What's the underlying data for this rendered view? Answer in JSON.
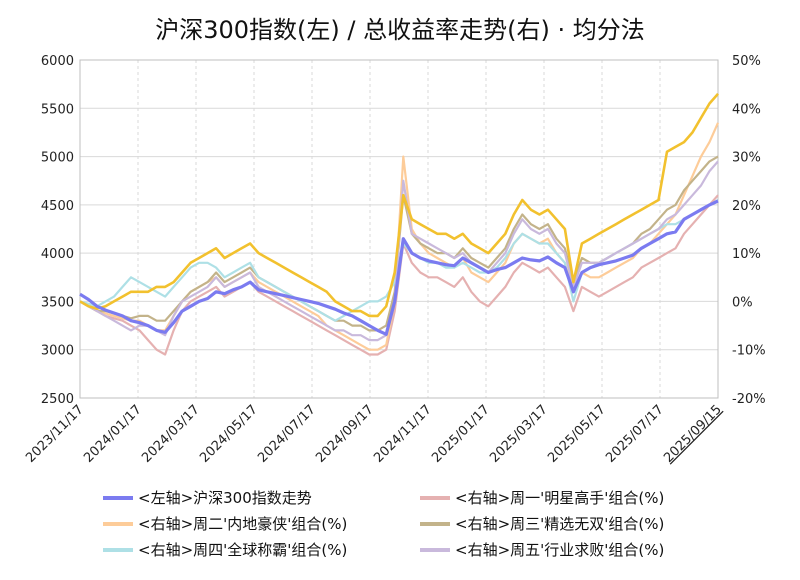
{
  "chart_data": {
    "type": "line",
    "title": "沪深300指数(左)  /  总收益率走势(右) · 均分法",
    "left_axis": {
      "ylim": [
        2500,
        6000
      ],
      "ticks": [
        "6000",
        "5500",
        "5000",
        "4500",
        "4000",
        "3500",
        "3000",
        "2500"
      ]
    },
    "right_axis": {
      "ylim": [
        -20,
        50
      ],
      "ticks": [
        "50%",
        "40%",
        "30%",
        "20%",
        "10%",
        "0%",
        "-10%",
        "-20%"
      ],
      "negative_tick_color": "#1ec51e"
    },
    "x_ticks": [
      "2023/11/17",
      "2024/01/17",
      "2024/03/17",
      "2024/05/17",
      "2024/07/17",
      "2024/09/17",
      "2024/11/17",
      "2025/01/17",
      "2025/03/17",
      "2025/05/17",
      "2025/07/17",
      "2025/09/15"
    ],
    "x_last_tick_color": "#e21b1b",
    "grid": true,
    "legend_position": "bottom",
    "series": [
      {
        "name": "<左轴>沪深300指数走势",
        "axis": "left",
        "color": "#7b7bf0",
        "values": [
          3575,
          3520,
          3450,
          3410,
          3380,
          3350,
          3300,
          3280,
          3250,
          3200,
          3180,
          3280,
          3400,
          3450,
          3500,
          3530,
          3600,
          3580,
          3620,
          3650,
          3700,
          3620,
          3600,
          3580,
          3560,
          3540,
          3520,
          3500,
          3480,
          3450,
          3420,
          3380,
          3350,
          3300,
          3250,
          3200,
          3160,
          3500,
          4150,
          4000,
          3950,
          3920,
          3900,
          3880,
          3870,
          3950,
          3900,
          3850,
          3800,
          3830,
          3850,
          3900,
          3950,
          3930,
          3920,
          3960,
          3900,
          3850,
          3600,
          3800,
          3850,
          3880,
          3900,
          3920,
          3950,
          3980,
          4050,
          4100,
          4150,
          4200,
          4220,
          4350,
          4400,
          4450,
          4500,
          4540
        ]
      },
      {
        "name": "<右轴>周一'明星高手'组合(%)",
        "axis": "right",
        "color": "#e5b1b1",
        "values": [
          0,
          -1,
          -2,
          -3,
          -3.5,
          -4,
          -5,
          -6,
          -8,
          -10,
          -11,
          -6,
          -2,
          0,
          1,
          2,
          3,
          1,
          2,
          3,
          4,
          2,
          1,
          0,
          -1,
          -2,
          -3,
          -4,
          -5,
          -6,
          -7,
          -8,
          -9,
          -10,
          -11,
          -11,
          -10,
          -2,
          12,
          8,
          6,
          5,
          5,
          4,
          3,
          5,
          2,
          0,
          -1,
          1,
          3,
          6,
          8,
          7,
          6,
          7,
          5,
          3,
          -2,
          3,
          2,
          1,
          2,
          3,
          4,
          5,
          7,
          8,
          9,
          10,
          11,
          14,
          16,
          18,
          20,
          22
        ]
      },
      {
        "name": "<右轴>周二'内地豪侠'组合(%)",
        "axis": "right",
        "color": "#fdcc99",
        "values": [
          0,
          -1,
          -2,
          -2.5,
          -3,
          -3.5,
          -4,
          -4,
          -5,
          -6,
          -6,
          -3,
          0,
          2,
          3,
          4,
          5,
          3,
          4,
          5,
          6,
          4,
          3,
          2,
          1,
          0,
          -1,
          -2,
          -3,
          -5,
          -6,
          -7,
          -8,
          -9,
          -10,
          -10,
          -9,
          0,
          30,
          15,
          12,
          10,
          9,
          8,
          7,
          9,
          6,
          5,
          4,
          6,
          8,
          12,
          14,
          13,
          12,
          13,
          10,
          8,
          2,
          6,
          5,
          5,
          6,
          7,
          8,
          9,
          11,
          12,
          14,
          16,
          18,
          22,
          26,
          30,
          33,
          37
        ]
      },
      {
        "name": "<右轴>周三'精选无双'组合(%)",
        "axis": "right",
        "color": "#c3b38a",
        "values": [
          0,
          -1,
          -2,
          -2,
          -2.5,
          -3,
          -3.5,
          -3,
          -3,
          -4,
          -4,
          -2,
          0,
          2,
          3,
          4,
          6,
          4,
          5,
          6,
          7,
          5,
          4,
          3,
          2,
          1,
          0,
          -1,
          -2,
          -3,
          -4,
          -4,
          -5,
          -5,
          -6,
          -6,
          -5,
          2,
          22,
          14,
          12,
          11,
          10,
          10,
          9,
          11,
          9,
          8,
          7,
          9,
          11,
          15,
          18,
          16,
          15,
          16,
          13,
          11,
          4,
          9,
          8,
          8,
          9,
          10,
          11,
          12,
          14,
          15,
          17,
          19,
          20,
          23,
          25,
          27,
          29,
          30
        ]
      },
      {
        "name": "<右轴>周四'全球称霸'组合(%)",
        "axis": "right",
        "color": "#aee0e6",
        "values": [
          0,
          -0.5,
          -1,
          0,
          1,
          3,
          5,
          4,
          3,
          2,
          1,
          3,
          5,
          7,
          8,
          8,
          7,
          5,
          6,
          7,
          8,
          5,
          4,
          3,
          2,
          1,
          0,
          -1,
          -2,
          -3,
          -4,
          -3,
          -2,
          -1,
          0,
          0,
          1,
          4,
          12,
          10,
          9,
          8,
          8,
          7,
          7,
          8,
          7,
          6,
          6,
          7,
          9,
          12,
          14,
          13,
          12,
          12,
          10,
          8,
          0,
          6,
          7,
          8,
          9,
          10,
          11,
          12,
          13,
          14,
          15,
          16,
          16,
          17,
          18,
          19,
          20,
          21
        ]
      },
      {
        "name": "<右轴>周五'行业求败'组合(%)",
        "axis": "right",
        "color": "#c9b9dc",
        "values": [
          0,
          -1,
          -2,
          -3,
          -4,
          -5,
          -6,
          -5,
          -5,
          -6,
          -7,
          -3,
          0,
          1,
          2,
          3,
          5,
          3,
          4,
          5,
          6,
          3,
          2,
          1,
          0,
          -1,
          -2,
          -3,
          -4,
          -5,
          -6,
          -6,
          -7,
          -7,
          -8,
          -8,
          -7,
          0,
          25,
          14,
          13,
          12,
          11,
          10,
          9,
          10,
          8,
          7,
          6,
          8,
          10,
          14,
          17,
          15,
          14,
          15,
          12,
          10,
          3,
          8,
          8,
          8,
          9,
          10,
          11,
          12,
          13,
          14,
          15,
          17,
          18,
          20,
          22,
          24,
          27,
          29
        ]
      },
      {
        "name": "",
        "axis": "right",
        "color": "#f2c12e",
        "values": [
          0,
          -1,
          -1.5,
          -1,
          0,
          1,
          2,
          2,
          2,
          3,
          3,
          4,
          6,
          8,
          9,
          10,
          11,
          9,
          10,
          11,
          12,
          10,
          9,
          8,
          7,
          6,
          5,
          4,
          3,
          2,
          0,
          -1,
          -2,
          -2,
          -3,
          -3,
          -1,
          6,
          22,
          17,
          16,
          15,
          14,
          14,
          13,
          14,
          12,
          11,
          10,
          12,
          14,
          18,
          21,
          19,
          18,
          19,
          17,
          15,
          4,
          12,
          13,
          14,
          15,
          16,
          17,
          18,
          19,
          20,
          21,
          31,
          32,
          33,
          35,
          38,
          41,
          43
        ]
      }
    ]
  },
  "legend": [
    {
      "label": "<左轴>沪深300指数走势",
      "color": "#7b7bf0"
    },
    {
      "label": "<右轴>周一'明星高手'组合(%)",
      "color": "#e5b1b1"
    },
    {
      "label": "<右轴>周二'内地豪侠'组合(%)",
      "color": "#fdcc99"
    },
    {
      "label": "<右轴>周三'精选无双'组合(%)",
      "color": "#c3b38a"
    },
    {
      "label": "<右轴>周四'全球称霸'组合(%)",
      "color": "#aee0e6"
    },
    {
      "label": "<右轴>周五'行业求败'组合(%)",
      "color": "#c9b9dc"
    }
  ]
}
